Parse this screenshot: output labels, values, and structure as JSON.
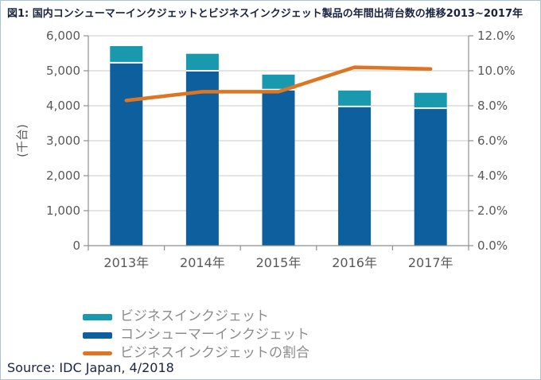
{
  "figure": {
    "title": "図1: 国内コンシューマーインクジェットとビジネスインクジェット製品の年間出荷台数の推移2013~2017年",
    "source": "Source: IDC Japan, 4/2018"
  },
  "colors": {
    "business": "#1899ae",
    "consumer": "#0d5f9d",
    "ratio_line": "#dd7522",
    "grid": "#c9c9c9",
    "axis": "#8f8f8f",
    "tick_text": "#595959",
    "legend_text": "#8c8c8c",
    "title_text": "#1a2440",
    "border": "#abc3d6",
    "bar_separator": "#ffffff"
  },
  "chart_data": {
    "type": "bar",
    "subtype": "stacked-bar-with-line",
    "categories": [
      "2013年",
      "2014年",
      "2015年",
      "2016年",
      "2017年"
    ],
    "series": [
      {
        "name": "コンシューマーインクジェット",
        "type": "bar",
        "stack": 1,
        "axis": "left",
        "color_key": "consumer",
        "values": [
          5230,
          5000,
          4460,
          3980,
          3930
        ]
      },
      {
        "name": "ビジネスインクジェット",
        "type": "bar",
        "stack": 1,
        "axis": "left",
        "color_key": "business",
        "values": [
          475,
          485,
          430,
          455,
          440
        ]
      },
      {
        "name": "ビジネスインクジェットの割合",
        "type": "line",
        "axis": "right",
        "color_key": "ratio_line",
        "values": [
          8.3,
          8.8,
          8.8,
          10.2,
          10.1
        ]
      }
    ],
    "left_axis": {
      "label": "(千台)",
      "min": 0,
      "max": 6000,
      "step": 1000,
      "tick_labels": [
        "0",
        "1,000",
        "2,000",
        "3,000",
        "4,000",
        "5,000",
        "6,000"
      ]
    },
    "right_axis": {
      "min": 0,
      "max": 12,
      "step": 2,
      "tick_labels": [
        "0.0%",
        "2.0%",
        "4.0%",
        "6.0%",
        "8.0%",
        "10.0%",
        "12.0%"
      ]
    },
    "grid": true,
    "legend_position": "bottom-left"
  },
  "legend": {
    "items": [
      {
        "label": "ビジネスインクジェット",
        "color_key": "business",
        "marker": "bar"
      },
      {
        "label": "コンシューマーインクジェット",
        "color_key": "consumer",
        "marker": "bar"
      },
      {
        "label": "ビジネスインクジェットの割合",
        "color_key": "ratio_line",
        "marker": "line"
      }
    ]
  }
}
